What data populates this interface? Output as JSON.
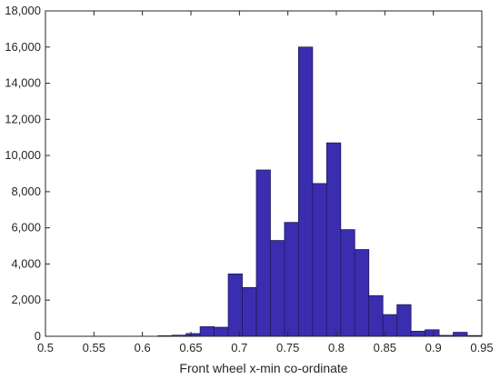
{
  "chart_data": {
    "type": "bar",
    "title": "",
    "xlabel": "Front wheel x-min co-ordinate",
    "ylabel": "",
    "xlim": [
      0.5,
      0.95
    ],
    "ylim": [
      0,
      18000
    ],
    "grid": false,
    "bar_color": "#3a2db0",
    "bin_width": 0.0145,
    "bin_start": 0.5,
    "values": [
      0,
      0,
      0,
      0,
      0,
      0,
      0,
      0,
      30,
      60,
      150,
      530,
      500,
      3450,
      2700,
      9200,
      5300,
      6300,
      16000,
      8450,
      10700,
      5900,
      4800,
      2250,
      1200,
      1750,
      280,
      360,
      50,
      220,
      40
    ],
    "x_ticks": [
      0.5,
      0.55,
      0.6,
      0.65,
      0.7,
      0.75,
      0.8,
      0.85,
      0.9,
      0.95
    ],
    "x_tick_labels": [
      "0.5",
      "0.55",
      "0.6",
      "0.65",
      "0.7",
      "0.75",
      "0.8",
      "0.85",
      "0.9",
      "0.95"
    ],
    "y_ticks": [
      0,
      2000,
      4000,
      6000,
      8000,
      10000,
      12000,
      14000,
      16000,
      18000
    ],
    "y_tick_labels": [
      "0",
      "2,000",
      "4,000",
      "6,000",
      "8,000",
      "10,000",
      "12,000",
      "14,000",
      "16,000",
      "18,000"
    ]
  }
}
